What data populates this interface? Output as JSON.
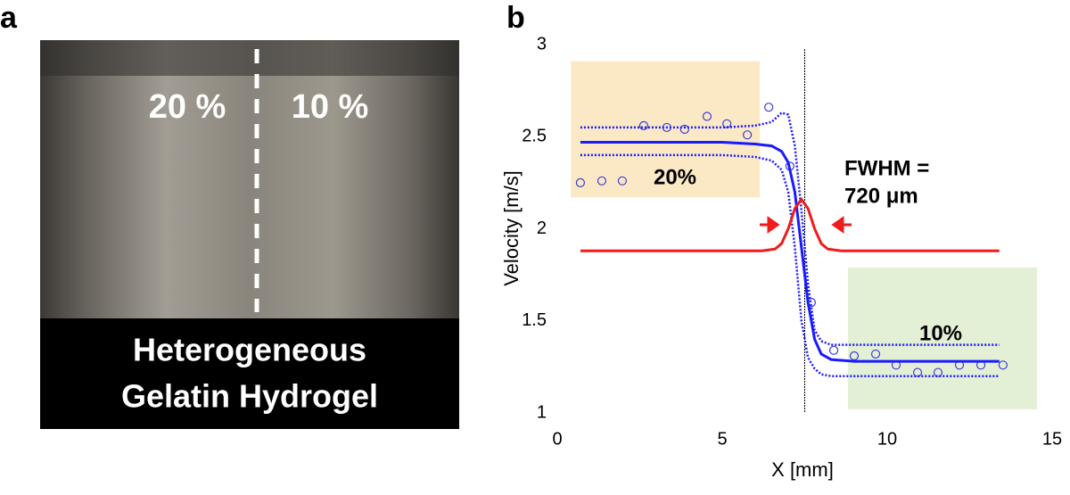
{
  "panel_a": {
    "label": "a",
    "left_text": "20 %",
    "right_text": "10 %",
    "caption": [
      "Heterogeneous",
      "Gelatin Hydrogel"
    ]
  },
  "chart_data": {
    "type": "scatter",
    "panel_label": "b",
    "xlabel": "X [mm]",
    "ylabel": "Velocity [m/s]",
    "xlim": [
      0,
      15
    ],
    "ylim": [
      1,
      3
    ],
    "xticks": [
      0,
      5,
      10,
      15
    ],
    "yticks": [
      1,
      1.5,
      2,
      2.5,
      3
    ],
    "grid": false,
    "regions": [
      {
        "label": "20%",
        "color": "#fbe9c6",
        "xrange": [
          0.41,
          6.14
        ],
        "yrange": [
          2.17,
          2.91
        ]
      },
      {
        "label": "10%",
        "color": "#e3f0d6",
        "xrange": [
          8.81,
          14.54
        ],
        "yrange": [
          1.02,
          1.79
        ]
      }
    ],
    "vline": {
      "x": 7.5,
      "color": "#000000"
    },
    "annotation": [
      "FWHM =",
      "720 μm"
    ],
    "series": [
      {
        "type": "scatter",
        "color": "#3b3bd6",
        "x": [
          0.7,
          1.35,
          1.97,
          2.62,
          3.32,
          3.86,
          4.54,
          5.14,
          5.76,
          6.41,
          7.05,
          7.7,
          8.38,
          9.0,
          9.65,
          10.27,
          10.92,
          11.54,
          12.19,
          12.84,
          13.51
        ],
        "values": [
          2.25,
          2.26,
          2.26,
          2.56,
          2.55,
          2.54,
          2.61,
          2.57,
          2.51,
          2.66,
          2.34,
          1.6,
          1.34,
          1.31,
          1.32,
          1.26,
          1.22,
          1.22,
          1.26,
          1.26,
          1.26
        ]
      },
      {
        "type": "line",
        "style": "solid",
        "color": "#1a1aff",
        "x": [
          0.7,
          5,
          6,
          6.5,
          6.8,
          7.0,
          7.2,
          7.4,
          7.6,
          7.8,
          8.0,
          8.3,
          9,
          13.4
        ],
        "values": [
          2.47,
          2.47,
          2.46,
          2.45,
          2.42,
          2.36,
          2.2,
          1.9,
          1.6,
          1.4,
          1.32,
          1.29,
          1.28,
          1.28
        ]
      },
      {
        "type": "line",
        "style": "dotted",
        "color": "#1a1aff",
        "x": [
          0.7,
          5,
          6,
          6.5,
          6.8,
          7.0,
          7.2,
          7.4,
          7.6,
          7.8,
          8.0,
          8.3,
          9,
          13.4
        ],
        "values": [
          2.55,
          2.55,
          2.56,
          2.58,
          2.63,
          2.62,
          2.45,
          2.1,
          1.7,
          1.45,
          1.39,
          1.37,
          1.37,
          1.37
        ]
      },
      {
        "type": "line",
        "style": "dotted",
        "color": "#1a1aff",
        "x": [
          0.7,
          5,
          6,
          6.5,
          6.8,
          7.0,
          7.2,
          7.4,
          7.6,
          7.8,
          8.0,
          8.3,
          9,
          13.4
        ],
        "values": [
          2.4,
          2.4,
          2.39,
          2.37,
          2.32,
          2.2,
          1.9,
          1.5,
          1.3,
          1.24,
          1.21,
          1.2,
          1.2,
          1.2
        ]
      },
      {
        "type": "line",
        "style": "solid",
        "color": "#ee1c1c",
        "x": [
          0.7,
          6.2,
          6.6,
          6.8,
          7.0,
          7.2,
          7.4,
          7.6,
          7.8,
          8.0,
          8.2,
          8.6,
          13.4
        ],
        "values": [
          1.88,
          1.88,
          1.89,
          1.92,
          2.0,
          2.11,
          2.16,
          2.11,
          2.0,
          1.92,
          1.89,
          1.88,
          1.88
        ]
      }
    ]
  }
}
